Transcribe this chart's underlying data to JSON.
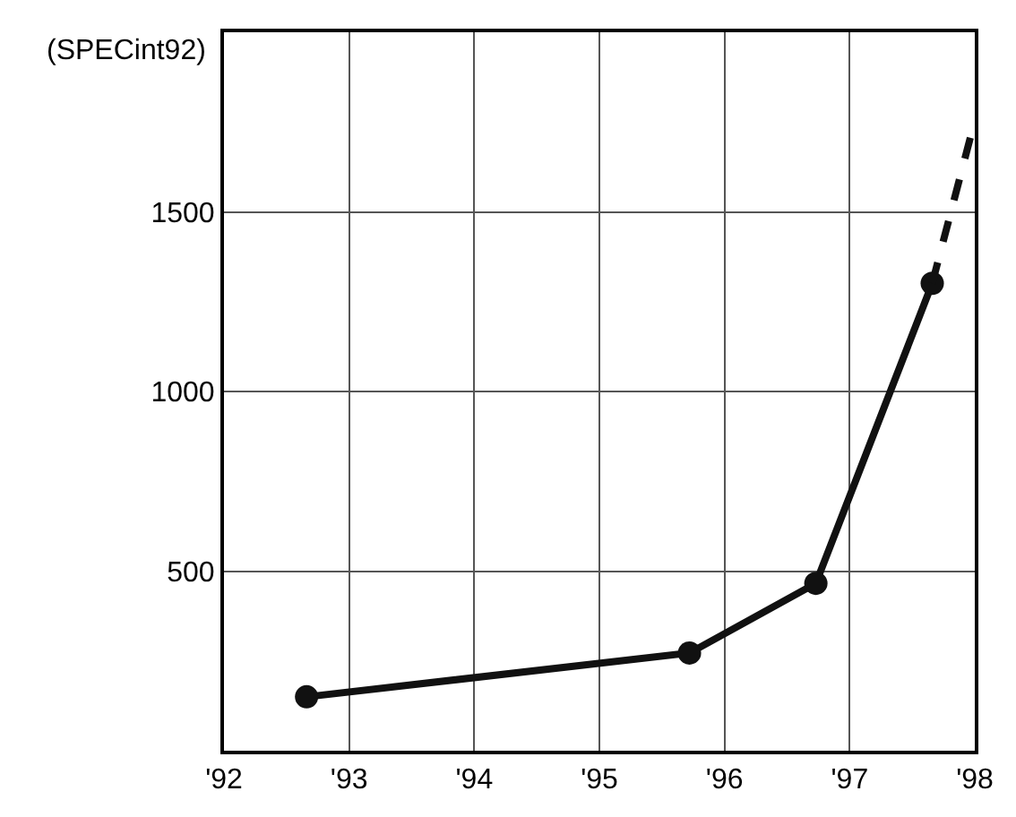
{
  "chart_data": {
    "type": "line",
    "ylabel": "(SPECint92)",
    "xlim": [
      1992,
      1998
    ],
    "xticks": [
      {
        "value": 1992,
        "label": "'92"
      },
      {
        "value": 1993,
        "label": "'93"
      },
      {
        "value": 1994,
        "label": "'94"
      },
      {
        "value": 1995,
        "label": "'95"
      },
      {
        "value": 1996,
        "label": "'96"
      },
      {
        "value": 1997,
        "label": "'97"
      },
      {
        "value": 1998,
        "label": "'98"
      }
    ],
    "ylim": [
      0,
      2000
    ],
    "yticks": [
      500,
      1000,
      1500
    ],
    "series": [
      {
        "color": "#111111",
        "x": [
          1992.66,
          1995.72,
          1996.73,
          1997.66
        ],
        "values": [
          150,
          272,
          466,
          1301
        ],
        "marker": "circle",
        "line_style": "solid"
      },
      {
        "color": "#111111",
        "x": [
          1997.66,
          1997.97
        ],
        "values": [
          1301,
          1714
        ],
        "marker": "none",
        "line_style": "dashed"
      }
    ],
    "grid": true,
    "legend": false
  }
}
